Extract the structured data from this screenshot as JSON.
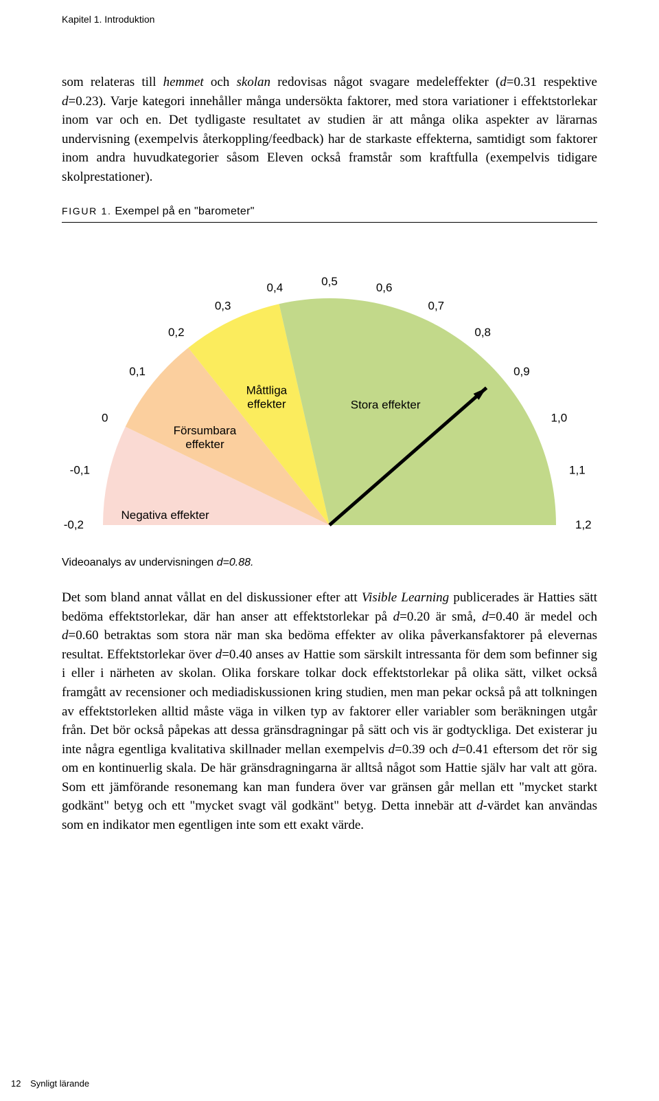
{
  "running_head": "Kapitel 1. Introduktion",
  "para1_a": "som relateras till ",
  "para1_hemmet": "hemmet",
  "para1_b": " och ",
  "para1_skolan": "skolan",
  "para1_c": " redovisas något svagare medeleffekter (",
  "para1_d1": "d",
  "para1_d1v": "=0.31 respektive ",
  "para1_d2": "d",
  "para1_d2v": "=0.23). Varje kategori innehåller många undersökta faktorer, med stora variationer i effektstorlekar inom var och en. Det tydligaste resultatet av studien är att många olika aspekter av lärarnas undervisning (exempelvis återkoppling/feedback) har de starkaste effekterna, samtidigt som faktorer inom andra huvudkategorier såsom Eleven också framstår som kraftfulla (exempelvis tidigare skolprestationer).",
  "figure_label_sc": "FIGUR 1.",
  "figure_label_rest": " Exempel på en \"barometer\"",
  "barometer": {
    "type": "gauge",
    "background_color": "#ffffff",
    "wedge_pink": "#fadad3",
    "wedge_orange": "#fbcf9e",
    "wedge_yellow": "#fbec5d",
    "wedge_green": "#c2d98a",
    "outer_labels": [
      "-0,2",
      "-0,1",
      "0",
      "0,1",
      "0,2",
      "0,3",
      "0,4",
      "0,5",
      "0,6",
      "0,7",
      "0,8",
      "0,9",
      "1,0",
      "1,1",
      "1,2"
    ],
    "region_neg": "Negativa effekter",
    "region_small": "Försumbara\neffekter",
    "region_mid": "Måttliga\neffekter",
    "region_large": "Stora effekter",
    "arrow_value": 0.88,
    "arrow_color": "#000000",
    "arrow_width": 5,
    "scale_min": -0.2,
    "scale_max": 1.2,
    "angle_start_deg": 180,
    "angle_end_deg": 0,
    "subnote_a": "Videoanalys av undervisningen ",
    "subnote_d": "d=0.88."
  },
  "para2_a": "Det som bland annat vållat en del diskussioner efter att ",
  "para2_vl": "Visible Learning",
  "para2_b": " publicerades är Hatties sätt bedöma effektstorlekar, där han anser att effektstorlekar på ",
  "para2_d1": "d",
  "para2_d1v": "=0.20 är små, ",
  "para2_d2": "d",
  "para2_d2v": "=0.40 är medel och ",
  "para2_d3": "d",
  "para2_d3v": "=0.60 betraktas som stora när man ska bedöma effekter av olika påverkansfaktorer på elevernas resultat. Effektstorlekar över ",
  "para2_d4": "d",
  "para2_d4v": "=0.40 anses av Hattie som särskilt intressanta för dem som befinner sig i eller i närheten av skolan. Olika forskare tolkar dock effektstorlekar på olika sätt, vilket också framgått av recensioner och mediadiskussionen kring studien, men man pekar också på att tolkningen av effektstorleken alltid måste väga in vilken typ av faktorer eller variabler som beräkningen utgår från. Det bör också påpekas att dessa gränsdragningar på sätt och vis är godtyckliga. Det existerar ju inte några egentliga kvalitativa skillnader mellan exempelvis ",
  "para2_d5": "d",
  "para2_d5v": "=0.39 och ",
  "para2_d6": "d",
  "para2_d6v": "=0.41 eftersom det rör sig om en kontinuerlig skala. De här gränsdragningarna är alltså något som Hattie själv har valt att göra. Som ett jämförande resonemang kan man fundera över var gränsen går mellan ett \"mycket starkt godkänt\" betyg och ett \"mycket svagt väl godkänt\" betyg. Detta innebär att ",
  "para2_d7": "d",
  "para2_d7v": "-värdet kan användas som en indikator men egentligen inte som ett exakt värde.",
  "footer_page": "12",
  "footer_title": "Synligt lärande"
}
